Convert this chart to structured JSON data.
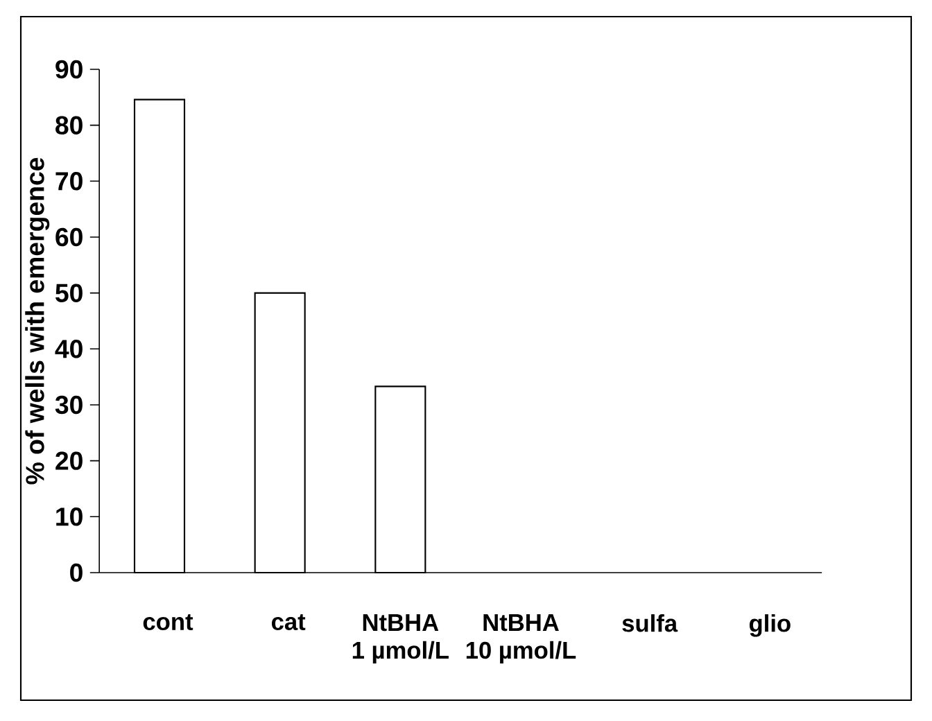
{
  "chart_data": {
    "type": "bar",
    "ylabel": "% of wells with emergence",
    "categories": [
      "cont",
      "cat",
      "NtBHA 1 µmol/L",
      "NtBHA 10 µmol/L",
      "sulfa",
      "glio"
    ],
    "values": [
      84.6,
      50,
      33.3,
      0,
      0,
      0
    ],
    "color": "#ffffff",
    "ylim": [
      0,
      90
    ],
    "yticks": [
      0,
      10,
      20,
      30,
      40,
      50,
      60,
      70,
      80,
      90
    ]
  }
}
